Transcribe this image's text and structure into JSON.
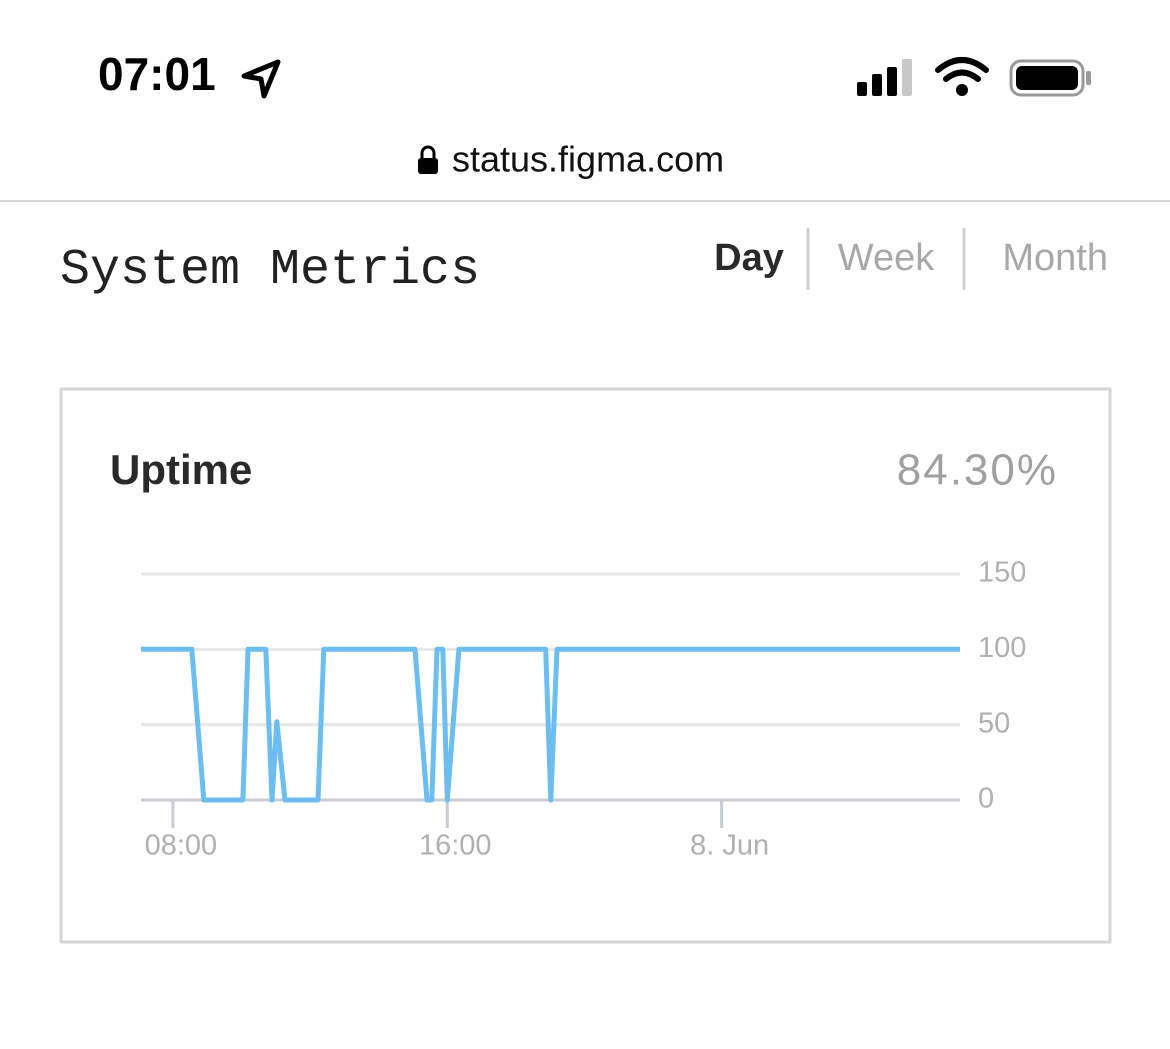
{
  "status_bar": {
    "time": "07:01"
  },
  "browser": {
    "url": "status.figma.com"
  },
  "page": {
    "title": "System Metrics",
    "tabs": [
      "Day",
      "Week",
      "Month"
    ],
    "active_tab": 0
  },
  "card": {
    "title": "Uptime",
    "summary": "84.30%"
  },
  "chart_data": {
    "type": "line",
    "color": "#6cbdf0",
    "grid": true,
    "x": [
      7.07,
      8.55,
      8.9,
      10.04,
      10.19,
      10.71,
      10.89,
      11.03,
      11.27,
      12.23,
      12.4,
      15.06,
      15.41,
      15.55,
      15.7,
      15.87,
      16.0,
      16.34,
      18.87,
      19.02,
      19.2,
      30.95
    ],
    "values": [
      100,
      100,
      0,
      0,
      100,
      100,
      0,
      52,
      0,
      0,
      100,
      100,
      0,
      0,
      100,
      100,
      0,
      100,
      100,
      0,
      100,
      100
    ],
    "xlim": [
      7.07,
      30.95
    ],
    "xticks": [
      {
        "value": 8,
        "label": "08:00"
      },
      {
        "value": 16,
        "label": "16:00"
      },
      {
        "value": 24,
        "label": "8. Jun"
      }
    ],
    "ylim": [
      0,
      150
    ],
    "yticks": [
      0,
      50,
      100,
      150
    ]
  }
}
